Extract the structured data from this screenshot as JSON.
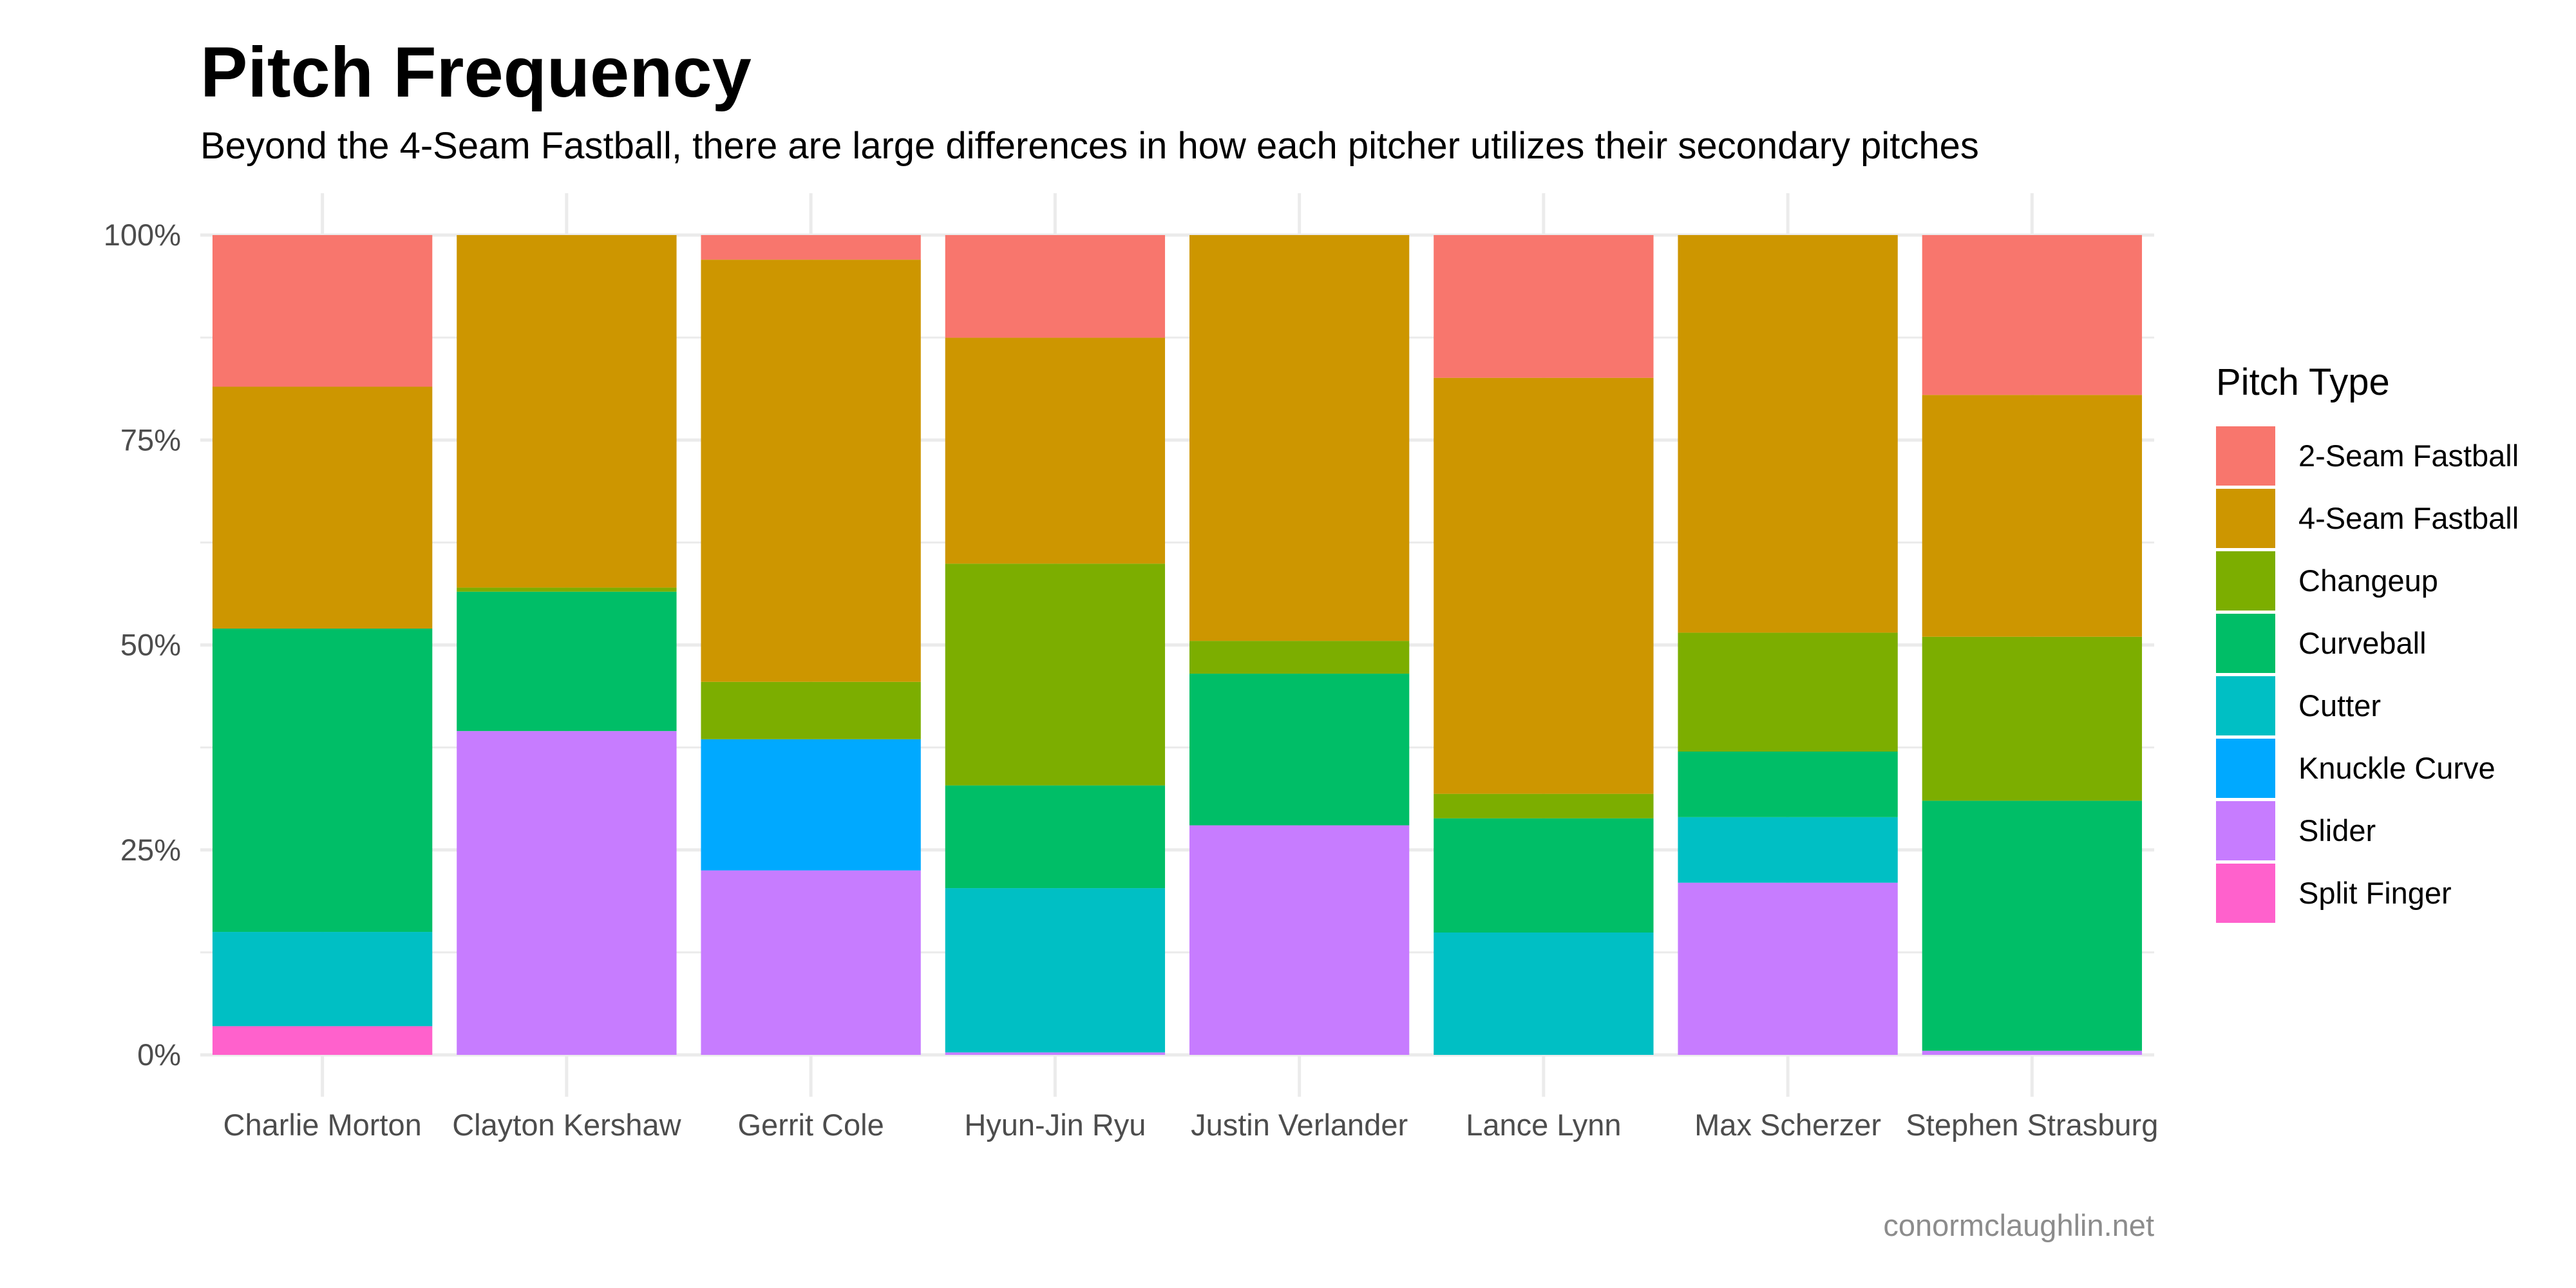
{
  "chart_data": {
    "type": "bar",
    "stacked": true,
    "title": "Pitch Frequency",
    "subtitle": "Beyond the 4-Seam Fastball, there are large differences in how each pitcher utilizes their secondary pitches",
    "xlabel": "",
    "ylabel": "",
    "ylim": [
      0,
      100
    ],
    "y_ticks": [
      "0%",
      "25%",
      "50%",
      "75%",
      "100%"
    ],
    "grid": true,
    "legend": {
      "title": "Pitch Type",
      "position": "right"
    },
    "caption": "conormclaughlin.net",
    "categories": [
      "Charlie Morton",
      "Clayton Kershaw",
      "Gerrit Cole",
      "Hyun-Jin Ryu",
      "Justin Verlander",
      "Lance Lynn",
      "Max Scherzer",
      "Stephen Strasburg"
    ],
    "series": [
      {
        "name": "2-Seam Fastball",
        "color": "#F8766D",
        "values": [
          18.5,
          0,
          3.0,
          12.5,
          0,
          17.5,
          0,
          19.5
        ]
      },
      {
        "name": "4-Seam Fastball",
        "color": "#CD9600",
        "values": [
          29.5,
          43.0,
          51.5,
          27.5,
          49.5,
          51.0,
          48.5,
          29.5
        ]
      },
      {
        "name": "Changeup",
        "color": "#7CAE00",
        "values": [
          0,
          0.5,
          7.0,
          27.0,
          4.0,
          3.0,
          14.5,
          20.0
        ]
      },
      {
        "name": "Curveball",
        "color": "#00BE67",
        "values": [
          37.0,
          17.0,
          0,
          12.5,
          18.5,
          14.0,
          8.0,
          30.5
        ]
      },
      {
        "name": "Cutter",
        "color": "#00BFC4",
        "values": [
          11.5,
          0,
          0,
          20.0,
          0,
          15.0,
          8.0,
          0
        ]
      },
      {
        "name": "Knuckle Curve",
        "color": "#00A9FF",
        "values": [
          0,
          0,
          16.0,
          0,
          0,
          0,
          0,
          0
        ]
      },
      {
        "name": "Slider",
        "color": "#C77CFF",
        "values": [
          0,
          39.5,
          22.5,
          0.3,
          28.0,
          0,
          21.0,
          0.5
        ]
      },
      {
        "name": "Split Finger",
        "color": "#FF61CC",
        "values": [
          3.5,
          0,
          0,
          0,
          0,
          0,
          0,
          0
        ]
      }
    ]
  }
}
